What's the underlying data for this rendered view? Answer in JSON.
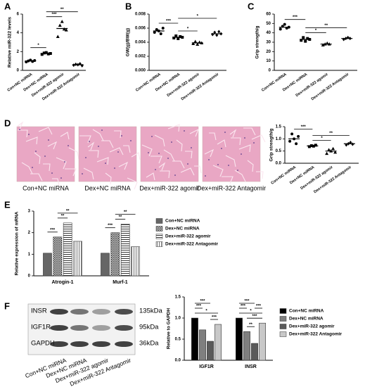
{
  "chart_data": [
    {
      "type": "dot",
      "panel": "A",
      "ylabel": "Relative miR-322 levels",
      "categories": [
        "Con+NC miRNA",
        "Dex+NC miRNA",
        "Dex+miR-322 agomir",
        "Dex+miR-322 Antagomir"
      ],
      "values": [
        1.0,
        1.8,
        4.46,
        0.6
      ],
      "points": [
        [
          0.9,
          1.0,
          1.1,
          0.95,
          1.05
        ],
        [
          1.7,
          1.85,
          1.9,
          1.75,
          1.8
        ],
        [
          3.6,
          4.8,
          5.2,
          4.4,
          4.3
        ],
        [
          0.55,
          0.65,
          0.6,
          0.7,
          0.5
        ]
      ],
      "ylim": [
        0,
        6
      ],
      "yticks": [
        0,
        2,
        4,
        6
      ],
      "annotations": [
        "*",
        "***",
        "**"
      ]
    },
    {
      "type": "dot",
      "panel": "B",
      "ylabel": "GW(g)/BW(g)",
      "categories": [
        "Con+NC miRNA",
        "Dex+NC miRNA",
        "Dex+miR-322 agomir",
        "Dex+miR-322 Antagomir"
      ],
      "values": [
        0.0056,
        0.0047,
        0.0039,
        0.0052
      ],
      "points": [
        [
          0.0054,
          0.0058,
          0.0056,
          0.0052,
          0.006
        ],
        [
          0.0046,
          0.0049,
          0.0045,
          0.0048,
          0.0047
        ],
        [
          0.0038,
          0.0041,
          0.0037,
          0.004,
          0.0039
        ],
        [
          0.0051,
          0.0054,
          0.005,
          0.0055,
          0.0052
        ]
      ],
      "ylim": [
        0,
        0.008
      ],
      "yticks": [
        {
          "value": 0,
          "label": "0.000"
        },
        {
          "value": 0.002,
          "label": "0.002"
        },
        {
          "value": 0.004,
          "label": "0.004"
        },
        {
          "value": 0.006,
          "label": "0.006"
        },
        {
          "value": 0.008,
          "label": "0.008"
        }
      ],
      "annotations": [
        "***",
        "*",
        "*"
      ]
    },
    {
      "type": "dot",
      "panel": "C",
      "ylabel": "Grip strength/g",
      "categories": [
        "Con+NC miRNA",
        "Dex+NC miRNA",
        "Dex+miR-322 agomir",
        "Dex+miR-322 Antagomir"
      ],
      "values": [
        46,
        33,
        28,
        34
      ],
      "points": [
        [
          44,
          47,
          49,
          45,
          46
        ],
        [
          32,
          35,
          31,
          34,
          33
        ],
        [
          27,
          28,
          29,
          28
        ],
        [
          33,
          34,
          35,
          34
        ]
      ],
      "ylim": [
        0,
        60
      ],
      "yticks": [
        0,
        10,
        20,
        30,
        40,
        50,
        60
      ],
      "annotations": [
        "***",
        "*",
        "**"
      ]
    },
    {
      "type": "dot",
      "ylabel": "Grip strength/g",
      "categories": [
        "Con+NC miRNA",
        "Dex+NC miRNA",
        "Dex+miR-322 agomir",
        "Dex+miR-322 Antagomir"
      ],
      "values": [
        1.0,
        0.71,
        0.5,
        0.8
      ],
      "points": [
        [
          0.9,
          1.2,
          1.0,
          0.8,
          1.1
        ],
        [
          0.68,
          0.72,
          0.7,
          0.74
        ],
        [
          0.4,
          0.55,
          0.5,
          0.6,
          0.45
        ],
        [
          0.75,
          0.8,
          0.85,
          0.78
        ]
      ],
      "ylim": [
        0,
        1.5
      ],
      "yticks": [
        {
          "value": 0,
          "label": "0.0"
        },
        {
          "value": 0.5,
          "label": "0.5"
        },
        {
          "value": 1,
          "label": "1.0"
        },
        {
          "value": 1.5,
          "label": "1.5"
        }
      ],
      "annotations": [
        "***",
        "*",
        "**"
      ]
    },
    {
      "type": "bar",
      "panel": "E",
      "ylabel": "Relative expression of mRNA",
      "categories": [
        "Atrogin-1",
        "Murf-1"
      ],
      "series": [
        {
          "name": "Con+NC miRNA",
          "color": "#666666",
          "pattern": "solid",
          "values": [
            1.05,
            1.05
          ]
        },
        {
          "name": "Dex+NC miRNA",
          "color": "#333333",
          "pattern": "crosshatch",
          "values": [
            1.8,
            2.0
          ]
        },
        {
          "name": "Dex+miR-322 agomir",
          "color": "#333333",
          "pattern": "horizontal",
          "values": [
            2.45,
            2.4
          ]
        },
        {
          "name": "Dex+miR-322 Antagomir",
          "color": "#333333",
          "pattern": "vertical",
          "values": [
            1.6,
            1.35
          ]
        }
      ],
      "ylim": [
        0,
        3
      ],
      "yticks": [
        0,
        1,
        2,
        3
      ],
      "annotations": [
        [
          "***",
          "**",
          "**"
        ],
        [
          "***",
          "**",
          "**"
        ]
      ]
    },
    {
      "type": "bar",
      "ylabel": "Relative to GAPDH",
      "categories": [
        "IGF1R",
        "INSR"
      ],
      "series": [
        {
          "name": "Con+NC miRNA",
          "color": "#000000",
          "values": [
            1.0,
            1.0
          ]
        },
        {
          "name": "Dex+NC miRNA",
          "color": "#7f7f7f",
          "values": [
            0.72,
            0.68
          ]
        },
        {
          "name": "Dex+miR-322 agomir",
          "color": "#5a5a5a",
          "values": [
            0.45,
            0.4
          ]
        },
        {
          "name": "Dex+miR-322 Antagomir",
          "color": "#c8c8c8",
          "values": [
            0.85,
            0.88
          ]
        }
      ],
      "ylim": [
        0,
        1.5
      ],
      "yticks": [
        {
          "value": 0,
          "label": "0.0"
        },
        {
          "value": 0.5,
          "label": "0.5"
        },
        {
          "value": 1,
          "label": "1.0"
        },
        {
          "value": 1.5,
          "label": "1.5"
        }
      ],
      "annotations": [
        [
          "*",
          "***",
          "***",
          "***"
        ],
        [
          "*",
          "***",
          "***",
          "***",
          "**",
          "***"
        ]
      ]
    }
  ],
  "images": {
    "panel": "D",
    "labels": [
      "Con+NC miRNA",
      "Dex+NC miRNA",
      "Dex+miR-322 agomir",
      "Dex+miR-322 Antagomir"
    ]
  },
  "blot": {
    "panel": "F",
    "bands": [
      {
        "label": "INSR",
        "size": "135kDa"
      },
      {
        "label": "IGF1R",
        "size": "95kDa"
      },
      {
        "label": "GAPDH",
        "size": "36kDa"
      }
    ],
    "lanes": [
      "Con+NC miRNA",
      "Dex+NC miRNA",
      "Dex+miR-322 agomir",
      "Dex+miR-322 Antagomir"
    ]
  }
}
